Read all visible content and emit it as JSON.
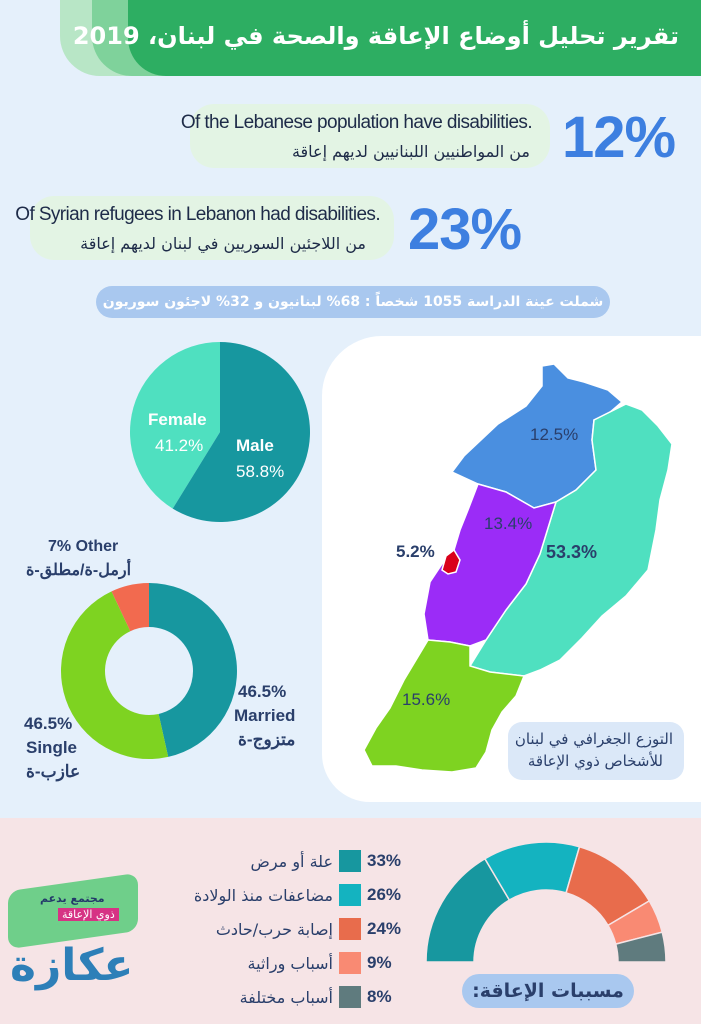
{
  "header": {
    "title": "تقرير تحليل أوضاع الإعاقة والصحة في لبنان، 2019"
  },
  "stats": [
    {
      "en": "Of the Lebanese population have disabilities.",
      "ar": "من المواطنيين اللبنانيين لديهم إعاقة",
      "value": "12%"
    },
    {
      "en": "Of Syrian refugees in Lebanon had disabilities.",
      "ar": "من اللاجئين السوريين في لبنان لديهم إعاقة",
      "value": "23%"
    }
  ],
  "sample_note": "شملت عينة الدراسة 1055 شخصاً : 68% لبنانيون و 32% لاجئون سوريون",
  "gender_chart": {
    "female_label": "Female",
    "female_value": "41.2%",
    "male_label": "Male",
    "male_value": "58.8%",
    "female_pct": 41.2,
    "male_pct": 58.8,
    "colors": {
      "female": "#4fe0c0",
      "male": "#17979f"
    }
  },
  "marital_chart": {
    "other_label": "7% Other",
    "other_ar": "أرمل-ة/مطلق-ة",
    "married_value": "46.5%",
    "married_label": "Married",
    "married_ar": "متزوج-ة",
    "single_value": "46.5%",
    "single_label": "Single",
    "single_ar": "عازب-ة",
    "married_pct": 46.5,
    "single_pct": 46.5,
    "other_pct": 7,
    "colors": {
      "married": "#17979f",
      "single": "#7ed321",
      "other": "#f26a4f"
    }
  },
  "map": {
    "regions": [
      {
        "value": "12.5%",
        "color": "#4a8fe0"
      },
      {
        "value": "13.4%",
        "color": "#9b2cf7"
      },
      {
        "value": "53.3%",
        "color": "#4fe0c0"
      },
      {
        "value": "5.2%",
        "color": "#d9001b"
      },
      {
        "value": "15.6%",
        "color": "#7ed321"
      }
    ],
    "caption_line1": "التوزع الجغرافي في لبنان",
    "caption_line2": "للأشخاص ذوي الإعاقة"
  },
  "causes": {
    "title": "مسببات الإعاقة:",
    "items": [
      {
        "pct": "33%",
        "label": "علة أو مرض",
        "value": 33,
        "color": "#17979f"
      },
      {
        "pct": "26%",
        "label": "مضاعفات منذ الولادة",
        "value": 26,
        "color": "#14b3c0"
      },
      {
        "pct": "24%",
        "label": "إصابة حرب/حادث",
        "value": 24,
        "color": "#e86c4c"
      },
      {
        "pct": "9%",
        "label": "أسباب وراثية",
        "value": 9,
        "color": "#f98a73"
      },
      {
        "pct": "8%",
        "label": "أسباب مختلفة",
        "value": 8,
        "color": "#5f7b7e"
      }
    ]
  },
  "logo": {
    "line1": "مجتمع يدعم",
    "line2": "ذوي الإعاقة",
    "name": "عكازة"
  }
}
